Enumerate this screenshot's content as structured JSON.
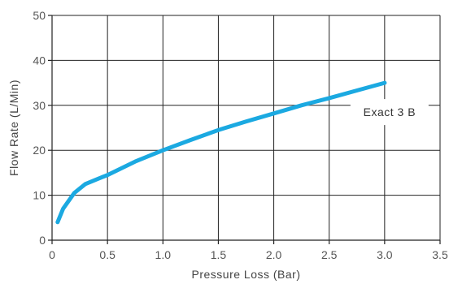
{
  "chart_data": {
    "type": "line",
    "title": "",
    "xlabel": "Pressure Loss (Bar)",
    "ylabel": "Flow Rate (L/Min)",
    "xlim": [
      0,
      3.5
    ],
    "ylim": [
      0,
      50
    ],
    "x_ticks": [
      "0",
      "0.5",
      "1.0",
      "1.5",
      "2.0",
      "2.5",
      "3.0",
      "3.5"
    ],
    "y_ticks": [
      "0",
      "10",
      "20",
      "30",
      "40",
      "50"
    ],
    "grid": true,
    "series": [
      {
        "color": "#1ba9e1",
        "x": [
          0.05,
          0.1,
          0.2,
          0.3,
          0.4,
          0.5,
          0.75,
          1.0,
          1.25,
          1.5,
          1.75,
          2.0,
          2.25,
          2.5,
          2.75,
          3.0
        ],
        "y": [
          4.0,
          7.0,
          10.5,
          12.5,
          13.5,
          14.5,
          17.5,
          20.0,
          22.3,
          24.5,
          26.4,
          28.2,
          30.0,
          31.6,
          33.3,
          35.0
        ]
      }
    ],
    "annotations": [
      {
        "text": "Exact 3 B",
        "x": 3.0,
        "y": 35.0
      }
    ]
  }
}
